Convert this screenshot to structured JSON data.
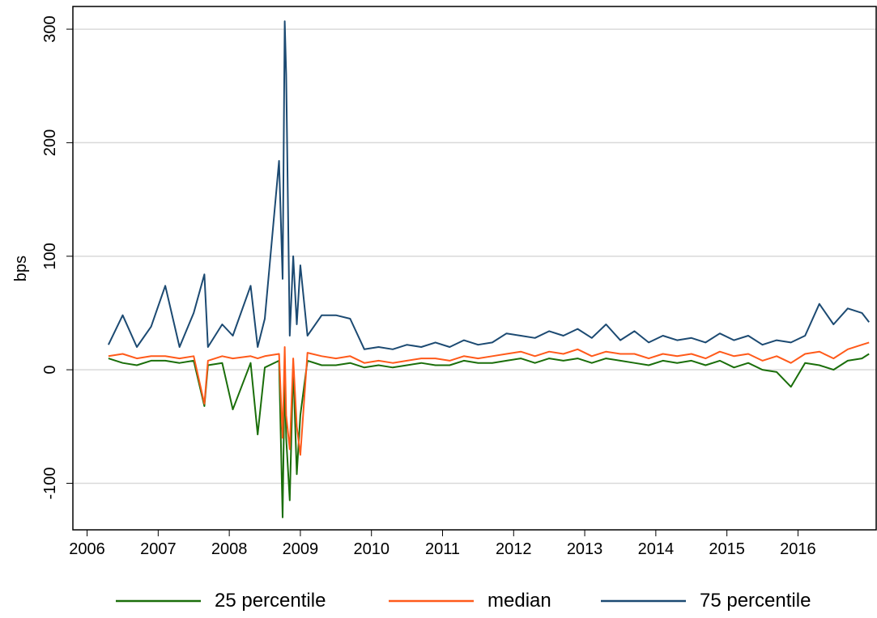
{
  "chart_data": {
    "type": "line",
    "ylabel": "bps",
    "x": [
      2006.3,
      2006.5,
      2006.7,
      2006.9,
      2007.1,
      2007.3,
      2007.5,
      2007.65,
      2007.7,
      2007.9,
      2008.05,
      2008.3,
      2008.4,
      2008.5,
      2008.7,
      2008.75,
      2008.78,
      2008.8,
      2008.85,
      2008.9,
      2008.95,
      2009.0,
      2009.1,
      2009.3,
      2009.5,
      2009.7,
      2009.9,
      2010.1,
      2010.3,
      2010.5,
      2010.7,
      2010.9,
      2011.1,
      2011.3,
      2011.5,
      2011.7,
      2011.9,
      2012.1,
      2012.3,
      2012.5,
      2012.7,
      2012.9,
      2013.1,
      2013.3,
      2013.5,
      2013.7,
      2013.9,
      2014.1,
      2014.3,
      2014.5,
      2014.7,
      2014.9,
      2015.1,
      2015.3,
      2015.5,
      2015.7,
      2015.9,
      2016.1,
      2016.3,
      2016.5,
      2016.7,
      2016.9,
      2017.0
    ],
    "series": [
      {
        "name": "25 percentile",
        "color": "#1a6e0a",
        "values": [
          10,
          6,
          4,
          8,
          8,
          6,
          8,
          -32,
          4,
          6,
          -35,
          6,
          -57,
          2,
          8,
          -130,
          0,
          -60,
          -115,
          4,
          -92,
          -40,
          8,
          4,
          4,
          6,
          2,
          4,
          2,
          4,
          6,
          4,
          4,
          8,
          6,
          6,
          8,
          10,
          6,
          10,
          8,
          10,
          6,
          10,
          8,
          6,
          4,
          8,
          6,
          8,
          4,
          8,
          2,
          6,
          0,
          -2,
          -15,
          6,
          4,
          0,
          8,
          10,
          14
        ]
      },
      {
        "name": "median",
        "color": "#ff5a1a",
        "values": [
          12,
          14,
          10,
          12,
          12,
          10,
          12,
          -30,
          8,
          12,
          10,
          12,
          10,
          12,
          14,
          -60,
          20,
          -40,
          -70,
          10,
          -50,
          -75,
          15,
          12,
          10,
          12,
          6,
          8,
          6,
          8,
          10,
          10,
          8,
          12,
          10,
          12,
          14,
          16,
          12,
          16,
          14,
          18,
          12,
          16,
          14,
          14,
          10,
          14,
          12,
          14,
          10,
          16,
          12,
          14,
          8,
          12,
          6,
          14,
          16,
          10,
          18,
          22,
          24
        ]
      },
      {
        "name": "75 percentile",
        "color": "#1c4a72",
        "values": [
          22,
          48,
          20,
          38,
          74,
          20,
          50,
          84,
          20,
          40,
          30,
          74,
          20,
          45,
          184,
          80,
          307,
          260,
          30,
          100,
          40,
          92,
          30,
          48,
          48,
          45,
          18,
          20,
          18,
          22,
          20,
          24,
          20,
          26,
          22,
          24,
          32,
          30,
          28,
          34,
          30,
          36,
          28,
          40,
          26,
          34,
          24,
          30,
          26,
          28,
          24,
          32,
          26,
          30,
          22,
          26,
          24,
          30,
          58,
          40,
          54,
          50,
          42
        ]
      }
    ],
    "xlim": [
      2005.8,
      2017.1
    ],
    "xticks": [
      2006,
      2007,
      2008,
      2009,
      2010,
      2011,
      2012,
      2013,
      2014,
      2015,
      2016
    ],
    "ylim": [
      -141,
      320
    ],
    "yticks": [
      -100,
      0,
      100,
      200,
      300
    ],
    "grid": true
  }
}
